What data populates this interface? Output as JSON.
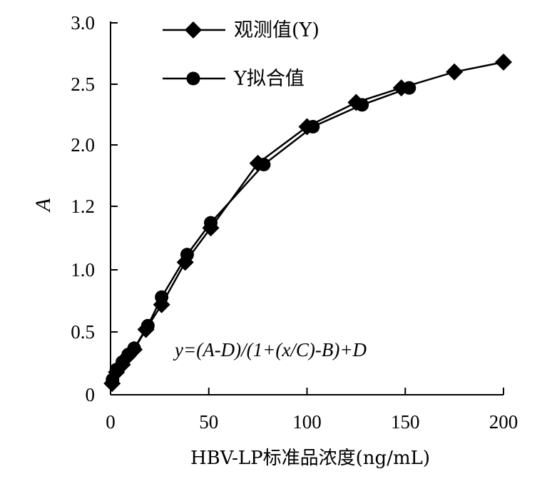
{
  "chart_data": {
    "type": "line",
    "xlabel": "HBV-LP标准品浓度(ng/mL)",
    "ylabel": "A",
    "xlim": [
      0,
      200
    ],
    "x_ticks": [
      "0",
      "50",
      "100",
      "150",
      "200"
    ],
    "y_ticks": [
      "0",
      "0.5",
      "1.0",
      "1.2",
      "2.0",
      "2.5",
      "3.0"
    ],
    "y_scale_note": "tick labels as printed (nonuniform)",
    "grid": false,
    "legend_position": "top-left",
    "formula": "y=(A-D)/(1+(x/C)-B)+D",
    "series": [
      {
        "name": "观测值(Y)",
        "marker": "diamond",
        "points": [
          {
            "x": 0.8,
            "y_label_pos": 0.09
          },
          {
            "x": 3,
            "y_label_pos": 0.18
          },
          {
            "x": 6,
            "y_label_pos": 0.24
          },
          {
            "x": 9,
            "y_label_pos": 0.31
          },
          {
            "x": 12,
            "y_label_pos": 0.36
          },
          {
            "x": 18,
            "y_label_pos": 0.52
          },
          {
            "x": 26,
            "y_label_pos": 0.72
          },
          {
            "x": 38,
            "y_label_pos": 1.06
          },
          {
            "x": 51,
            "y_label_pos": 1.33
          },
          {
            "x": 75,
            "y_label_pos": 1.85
          },
          {
            "x": 100,
            "y_label_pos": 2.15
          },
          {
            "x": 125,
            "y_label_pos": 2.35
          },
          {
            "x": 148,
            "y_label_pos": 2.47
          },
          {
            "x": 175,
            "y_label_pos": 2.6
          },
          {
            "x": 200,
            "y_label_pos": 2.68
          }
        ]
      },
      {
        "name": "Y拟合值",
        "marker": "circle",
        "points": [
          {
            "x": 1,
            "y_label_pos": 0.12
          },
          {
            "x": 3,
            "y_label_pos": 0.2
          },
          {
            "x": 6,
            "y_label_pos": 0.26
          },
          {
            "x": 9,
            "y_label_pos": 0.32
          },
          {
            "x": 12,
            "y_label_pos": 0.37
          },
          {
            "x": 19,
            "y_label_pos": 0.55
          },
          {
            "x": 26,
            "y_label_pos": 0.78
          },
          {
            "x": 39,
            "y_label_pos": 1.12
          },
          {
            "x": 51,
            "y_label_pos": 1.37
          },
          {
            "x": 78,
            "y_label_pos": 1.84
          },
          {
            "x": 103,
            "y_label_pos": 2.15
          },
          {
            "x": 128,
            "y_label_pos": 2.33
          },
          {
            "x": 152,
            "y_label_pos": 2.47
          }
        ]
      }
    ]
  }
}
